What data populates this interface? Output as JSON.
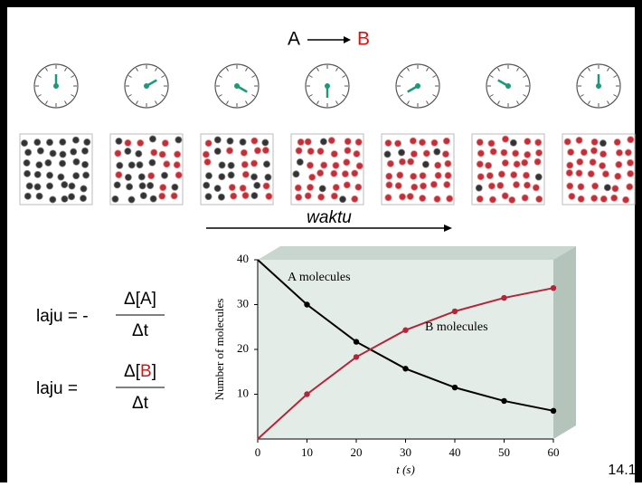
{
  "reaction": {
    "reactant": "A",
    "product": "B"
  },
  "time_label": "waktu",
  "rate_equations": {
    "eq1": {
      "lhs": "laju = -",
      "numerator": "Δ[A]",
      "denominator": "Δt"
    },
    "eq2": {
      "lhs": "laju =",
      "numerator_parts": [
        "Δ[",
        "B",
        "]"
      ],
      "denominator": "Δt"
    }
  },
  "slide_number": "14.1",
  "chart_data": {
    "type": "line",
    "x_label": "t (s)",
    "y_label": "Number of molecules",
    "x": [
      0,
      10,
      20,
      30,
      40,
      50,
      60
    ],
    "series": [
      {
        "name": "A molecules",
        "color": "#000000",
        "values": [
          40,
          30,
          21.7,
          15.7,
          11.5,
          8.5,
          6.3
        ]
      },
      {
        "name": "B molecules",
        "color": "#b5253a",
        "values": [
          0,
          10,
          18.3,
          24.3,
          28.5,
          31.5,
          33.7
        ]
      }
    ],
    "xlim": [
      0,
      60
    ],
    "xticks": [
      0,
      10,
      20,
      30,
      40,
      50,
      60
    ],
    "ylim": [
      0,
      40
    ],
    "yticks": [
      10,
      20,
      30,
      40
    ]
  }
}
